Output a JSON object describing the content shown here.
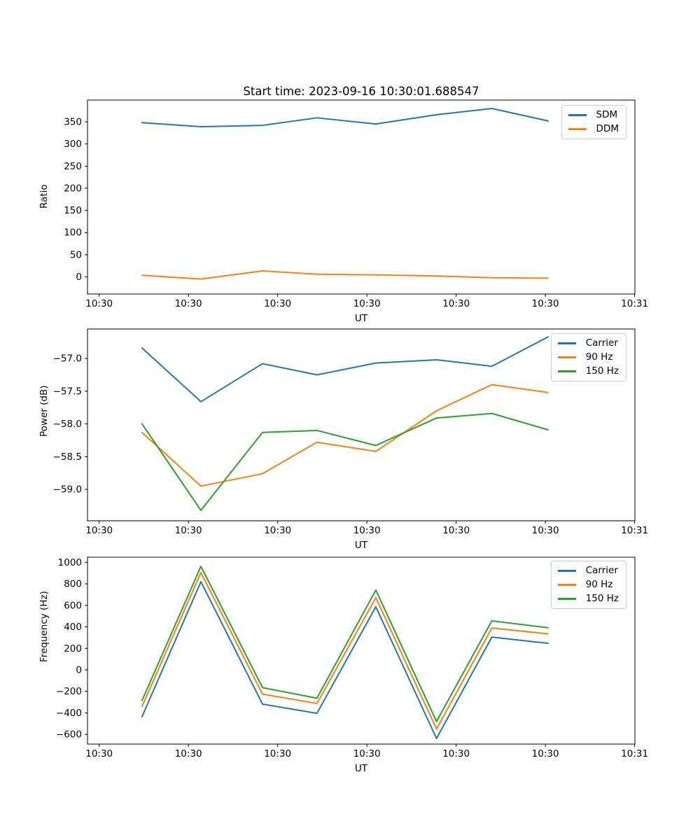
{
  "title": "Start time: 2023-09-16 10:30:01.688547",
  "chart_data": [
    {
      "type": "line",
      "title": "",
      "xlabel": "UT",
      "ylabel": "Ratio",
      "grid": false,
      "x": [
        4.8,
        11.4,
        18.3,
        24.4,
        31.0,
        37.8,
        44.0,
        50.3
      ],
      "x_note": "seconds after first x tick (ticks every 10 s)",
      "series": [
        {
          "name": "SDM",
          "color": "#1f77b4",
          "values": [
            348,
            339,
            342,
            359,
            345,
            366,
            380,
            352
          ]
        },
        {
          "name": "DDM",
          "color": "#ff7f0e",
          "values": [
            3.5,
            -5,
            13.5,
            6,
            4.5,
            2,
            -2,
            -3
          ]
        }
      ],
      "xlim": [
        -1.31,
        60.03
      ],
      "ylim": [
        -38.7,
        399
      ],
      "xticks": {
        "positions": [
          0,
          10,
          20,
          30,
          40,
          50,
          60
        ],
        "labels": [
          "10:30",
          "10:30",
          "10:30",
          "10:30",
          "10:30",
          "10:30",
          "10:31"
        ]
      },
      "yticks": {
        "positions": [
          350,
          300,
          250,
          200,
          150,
          100,
          50,
          0
        ],
        "labels": [
          "350",
          "300",
          "250",
          "200",
          "150",
          "100",
          "50",
          "0"
        ]
      },
      "legend": {
        "position": "upper right",
        "entries": [
          "SDM",
          "DDM"
        ]
      }
    },
    {
      "type": "line",
      "title": "",
      "xlabel": "UT",
      "ylabel": "Power (dB)",
      "grid": false,
      "x": [
        4.8,
        11.4,
        18.3,
        24.4,
        31.0,
        37.8,
        44.0,
        50.3
      ],
      "series": [
        {
          "name": "Carrier",
          "color": "#1f77b4",
          "values": [
            -56.84,
            -57.66,
            -57.08,
            -57.25,
            -57.07,
            -57.02,
            -57.12,
            -56.67
          ]
        },
        {
          "name": "90 Hz",
          "color": "#ff7f0e",
          "values": [
            -58.13,
            -58.95,
            -58.76,
            -58.28,
            -58.42,
            -57.8,
            -57.4,
            -57.52
          ]
        },
        {
          "name": "150 Hz",
          "color": "#2ca02c",
          "values": [
            -58.0,
            -59.32,
            -58.13,
            -58.1,
            -58.33,
            -57.91,
            -57.84,
            -58.09
          ]
        }
      ],
      "xlim": [
        -1.31,
        60.03
      ],
      "ylim": [
        -59.48,
        -56.55
      ],
      "xticks": {
        "positions": [
          0,
          10,
          20,
          30,
          40,
          50,
          60
        ],
        "labels": [
          "10:30",
          "10:30",
          "10:30",
          "10:30",
          "10:30",
          "10:30",
          "10:31"
        ]
      },
      "yticks": {
        "positions": [
          -57.0,
          -57.5,
          -58.0,
          -58.5,
          -59.0
        ],
        "labels": [
          "−57.0",
          "−57.5",
          "−58.0",
          "−58.5",
          "−59.0"
        ]
      },
      "legend": {
        "position": "upper right",
        "entries": [
          "Carrier",
          "90 Hz",
          "150 Hz"
        ]
      }
    },
    {
      "type": "line",
      "title": "",
      "xlabel": "UT",
      "ylabel": "Frequency (Hz)",
      "grid": false,
      "x": [
        4.8,
        11.4,
        18.3,
        24.4,
        31.0,
        37.8,
        44.0,
        50.3
      ],
      "series": [
        {
          "name": "Carrier",
          "color": "#1f77b4",
          "values": [
            -435,
            820,
            -318,
            -404,
            587,
            -638,
            305,
            247
          ]
        },
        {
          "name": "90 Hz",
          "color": "#ff7f0e",
          "values": [
            -340,
            905,
            -225,
            -312,
            672,
            -549,
            390,
            335
          ]
        },
        {
          "name": "150 Hz",
          "color": "#2ca02c",
          "values": [
            -285,
            963,
            -165,
            -263,
            742,
            -480,
            456,
            392
          ]
        }
      ],
      "xlim": [
        -1.31,
        60.03
      ],
      "ylim": [
        -690,
        1048
      ],
      "xticks": {
        "positions": [
          0,
          10,
          20,
          30,
          40,
          50,
          60
        ],
        "labels": [
          "10:30",
          "10:30",
          "10:30",
          "10:30",
          "10:30",
          "10:30",
          "10:31"
        ]
      },
      "yticks": {
        "positions": [
          1000,
          800,
          600,
          400,
          200,
          0,
          -200,
          -400,
          -600
        ],
        "labels": [
          "1000",
          "800",
          "600",
          "400",
          "200",
          "0",
          "−200",
          "−400",
          "−600"
        ]
      },
      "legend": {
        "position": "upper right",
        "entries": [
          "Carrier",
          "90 Hz",
          "150 Hz"
        ]
      }
    }
  ]
}
